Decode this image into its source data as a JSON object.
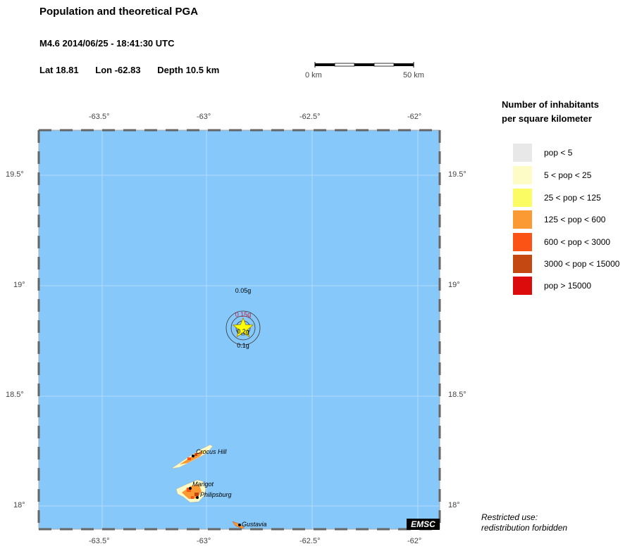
{
  "header": {
    "title": "Population and theoretical PGA",
    "event": "M4.6  2014/06/25 - 18:41:30 UTC",
    "lat": "Lat 18.81",
    "lon": "Lon -62.83",
    "depth": "Depth  10.5 km"
  },
  "scale_bar": {
    "start_label": "0 km",
    "end_label": "50 km"
  },
  "axes": {
    "longitude_ticks": [
      "-63.5°",
      "-63°",
      "-62.5°",
      "-62°"
    ],
    "latitude_ticks": [
      "19.5°",
      "19°",
      "18.5°",
      "18°"
    ]
  },
  "map": {
    "sea_color": "#87c8fa",
    "epicenter_color": "#ffff00",
    "pga_labels": [
      "0.05g",
      "0.15g",
      "0.2g",
      "0.1g"
    ],
    "places": [
      "Crocus Hill",
      "Marigot",
      "Philipsburg",
      "Gustavia"
    ]
  },
  "legend": {
    "title": "Number of inhabitants\nper square kilometer",
    "items": [
      {
        "label": "pop < 5",
        "color": "#e8e8e8"
      },
      {
        "label": "5 < pop < 25",
        "color": "#fdfbc6"
      },
      {
        "label": "25 < pop < 125",
        "color": "#fbfb64"
      },
      {
        "label": "125 < pop < 600",
        "color": "#fb9a32"
      },
      {
        "label": "600 < pop < 3000",
        "color": "#fb5216"
      },
      {
        "label": "3000 < pop < 15000",
        "color": "#c44812"
      },
      {
        "label": "pop > 15000",
        "color": "#dc0c0c"
      }
    ]
  },
  "footer": {
    "restricted": "Restricted use:\nredistribution forbidden",
    "logo": "EMSC"
  }
}
